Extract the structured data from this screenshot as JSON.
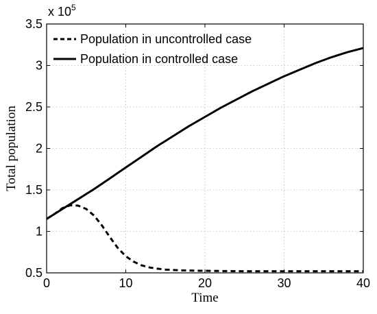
{
  "chart_data": {
    "type": "line",
    "xlabel": "Time",
    "ylabel": "Total population",
    "xlim": [
      0,
      40
    ],
    "ylim": [
      0.5,
      3.5
    ],
    "y_multiplier_label": "x 10",
    "y_multiplier_exponent": "5",
    "x_ticks": [
      0,
      10,
      20,
      30,
      40
    ],
    "y_ticks": [
      0.5,
      1,
      1.5,
      2,
      2.5,
      3,
      3.5
    ],
    "grid": true,
    "legend_position": "top-left",
    "series": [
      {
        "name": "Population in uncontrolled case",
        "style": "dashed",
        "color": "#000000",
        "x": [
          0,
          1,
          2,
          3,
          4,
          5,
          6,
          7,
          8,
          9,
          10,
          11,
          12,
          13,
          14,
          15,
          16,
          17,
          18,
          20,
          22,
          25,
          30,
          35,
          40
        ],
        "y": [
          1.15,
          1.21,
          1.28,
          1.315,
          1.31,
          1.27,
          1.19,
          1.07,
          0.93,
          0.8,
          0.7,
          0.635,
          0.59,
          0.565,
          0.55,
          0.54,
          0.535,
          0.53,
          0.528,
          0.525,
          0.522,
          0.52,
          0.52,
          0.52,
          0.52
        ]
      },
      {
        "name": "Population in controlled case",
        "style": "solid",
        "color": "#000000",
        "x": [
          0,
          2,
          4,
          6,
          8,
          10,
          12,
          14,
          16,
          18,
          20,
          22,
          24,
          26,
          28,
          30,
          32,
          34,
          36,
          38,
          40
        ],
        "y": [
          1.15,
          1.27,
          1.39,
          1.51,
          1.64,
          1.77,
          1.9,
          2.03,
          2.15,
          2.27,
          2.38,
          2.49,
          2.59,
          2.69,
          2.78,
          2.87,
          2.95,
          3.03,
          3.1,
          3.16,
          3.21
        ]
      }
    ]
  }
}
